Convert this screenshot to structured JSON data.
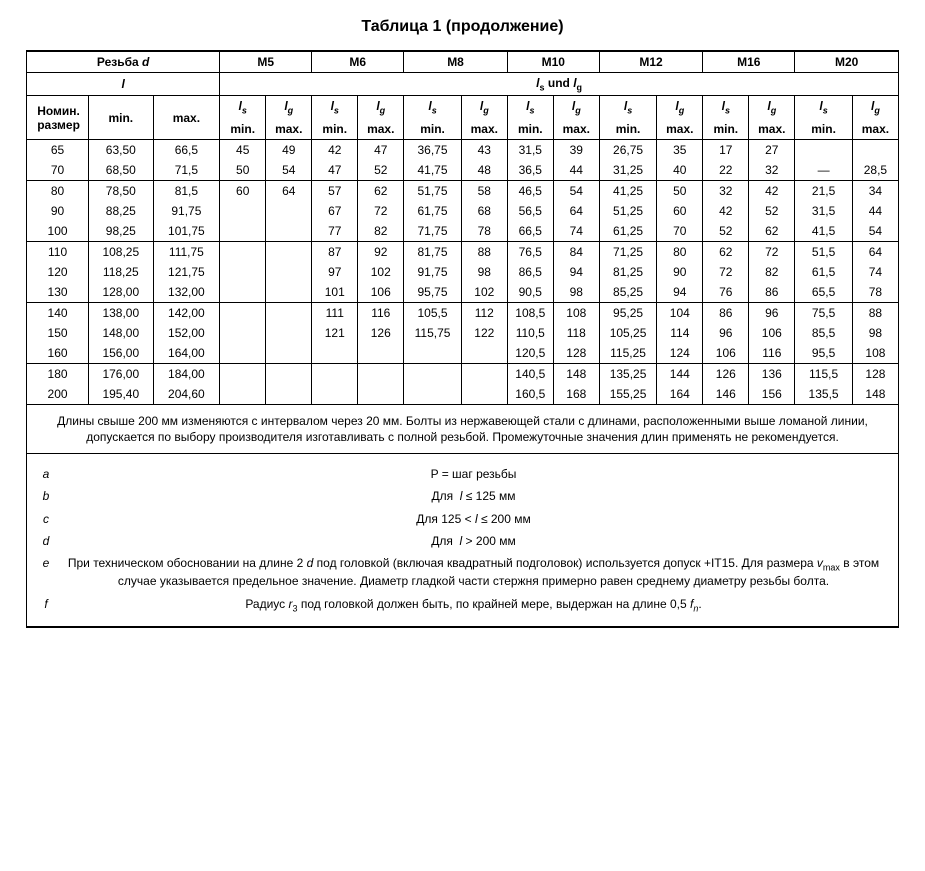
{
  "title": "Таблица 1 (продолжение)",
  "head": {
    "thread_label": "Резьба",
    "thread_symbol": "d",
    "sizes": [
      "M5",
      "M6",
      "M8",
      "M10",
      "M12",
      "M16",
      "M20"
    ],
    "l_symbol": "l",
    "lsg_label_1": "l",
    "lsg_label_s": "s",
    "lsg_label_und": " und ",
    "lsg_label_2": "l",
    "lsg_label_g": "g",
    "nom_label": "Номин. размер",
    "min_label": "min.",
    "max_label": "max.",
    "ls_sym": "l",
    "ls_sub": "s",
    "lg_sym": "l",
    "lg_sub": "g"
  },
  "groups": [
    {
      "rows": [
        {
          "nom": "65",
          "lmin": "63,50",
          "lmax": "66,5",
          "cells": [
            "45",
            "49",
            "42",
            "47",
            "36,75",
            "43",
            "31,5",
            "39",
            "26,75",
            "35",
            "17",
            "27",
            "",
            ""
          ]
        },
        {
          "nom": "70",
          "lmin": "68,50",
          "lmax": "71,5",
          "cells": [
            "50",
            "54",
            "47",
            "52",
            "41,75",
            "48",
            "36,5",
            "44",
            "31,25",
            "40",
            "22",
            "32",
            "—",
            "28,5"
          ]
        }
      ]
    },
    {
      "rows": [
        {
          "nom": "80",
          "lmin": "78,50",
          "lmax": "81,5",
          "cells": [
            "60",
            "64",
            "57",
            "62",
            "51,75",
            "58",
            "46,5",
            "54",
            "41,25",
            "50",
            "32",
            "42",
            "21,5",
            "34"
          ]
        },
        {
          "nom": "90",
          "lmin": "88,25",
          "lmax": "91,75",
          "cells": [
            "",
            "",
            "67",
            "72",
            "61,75",
            "68",
            "56,5",
            "64",
            "51,25",
            "60",
            "42",
            "52",
            "31,5",
            "44"
          ]
        },
        {
          "nom": "100",
          "lmin": "98,25",
          "lmax": "101,75",
          "cells": [
            "",
            "",
            "77",
            "82",
            "71,75",
            "78",
            "66,5",
            "74",
            "61,25",
            "70",
            "52",
            "62",
            "41,5",
            "54"
          ]
        }
      ]
    },
    {
      "rows": [
        {
          "nom": "110",
          "lmin": "108,25",
          "lmax": "111,75",
          "cells": [
            "",
            "",
            "87",
            "92",
            "81,75",
            "88",
            "76,5",
            "84",
            "71,25",
            "80",
            "62",
            "72",
            "51,5",
            "64"
          ]
        },
        {
          "nom": "120",
          "lmin": "118,25",
          "lmax": "121,75",
          "cells": [
            "",
            "",
            "97",
            "102",
            "91,75",
            "98",
            "86,5",
            "94",
            "81,25",
            "90",
            "72",
            "82",
            "61,5",
            "74"
          ]
        },
        {
          "nom": "130",
          "lmin": "128,00",
          "lmax": "132,00",
          "cells": [
            "",
            "",
            "101",
            "106",
            "95,75",
            "102",
            "90,5",
            "98",
            "85,25",
            "94",
            "76",
            "86",
            "65,5",
            "78"
          ]
        }
      ]
    },
    {
      "rows": [
        {
          "nom": "140",
          "lmin": "138,00",
          "lmax": "142,00",
          "cells": [
            "",
            "",
            "111",
            "116",
            "105,5",
            "112",
            "108,5",
            "108",
            "95,25",
            "104",
            "86",
            "96",
            "75,5",
            "88"
          ]
        },
        {
          "nom": "150",
          "lmin": "148,00",
          "lmax": "152,00",
          "cells": [
            "",
            "",
            "121",
            "126",
            "115,75",
            "122",
            "110,5",
            "118",
            "105,25",
            "114",
            "96",
            "106",
            "85,5",
            "98"
          ]
        },
        {
          "nom": "160",
          "lmin": "156,00",
          "lmax": "164,00",
          "cells": [
            "",
            "",
            "",
            "",
            "",
            "",
            "120,5",
            "128",
            "115,25",
            "124",
            "106",
            "116",
            "95,5",
            "108"
          ]
        }
      ]
    },
    {
      "rows": [
        {
          "nom": "180",
          "lmin": "176,00",
          "lmax": "184,00",
          "cells": [
            "",
            "",
            "",
            "",
            "",
            "",
            "140,5",
            "148",
            "135,25",
            "144",
            "126",
            "136",
            "115,5",
            "128"
          ]
        },
        {
          "nom": "200",
          "lmin": "195,40",
          "lmax": "204,60",
          "cells": [
            "",
            "",
            "",
            "",
            "",
            "",
            "160,5",
            "168",
            "155,25",
            "164",
            "146",
            "156",
            "135,5",
            "148"
          ]
        }
      ]
    }
  ],
  "note_text": "Длины свыше 200 мм изменяются с интервалом через 20 мм. Болты из нержавеющей стали с длинами, расположенными выше ломаной линии, допускается по выбору производителя изготавливать с полной резьбой. Промежуточные значения длин применять не рекомендуется.",
  "footnotes": [
    {
      "letter": "a",
      "html": "P = шаг резьбы"
    },
    {
      "letter": "b",
      "html": "Для &nbsp;<span class='it'>l</span> ≤ 125 мм"
    },
    {
      "letter": "c",
      "html": "Для 125 &lt; <span class='it'>l</span> ≤ 200 мм"
    },
    {
      "letter": "d",
      "html": "Для &nbsp;<span class='it'>l</span> > 200 мм"
    },
    {
      "letter": "e",
      "html": "При техническом обосновании на длине 2 <span class='it'>d</span> под головкой (включая квадратный подголовок) используется допуск +IT15. Для размера <span class='it'>v</span><sub>max</sub> в этом случае указывается предельное значение. Диаметр гладкой части стержня примерно равен среднему диаметру резьбы болта."
    },
    {
      "letter": "f",
      "html": "Радиус <span class='it'>r</span><sub>3</sub> под головкой должен быть, по крайней мере, выдержан на длине 0,5 <span class='it'>f<sub>n</sub></span>."
    }
  ]
}
